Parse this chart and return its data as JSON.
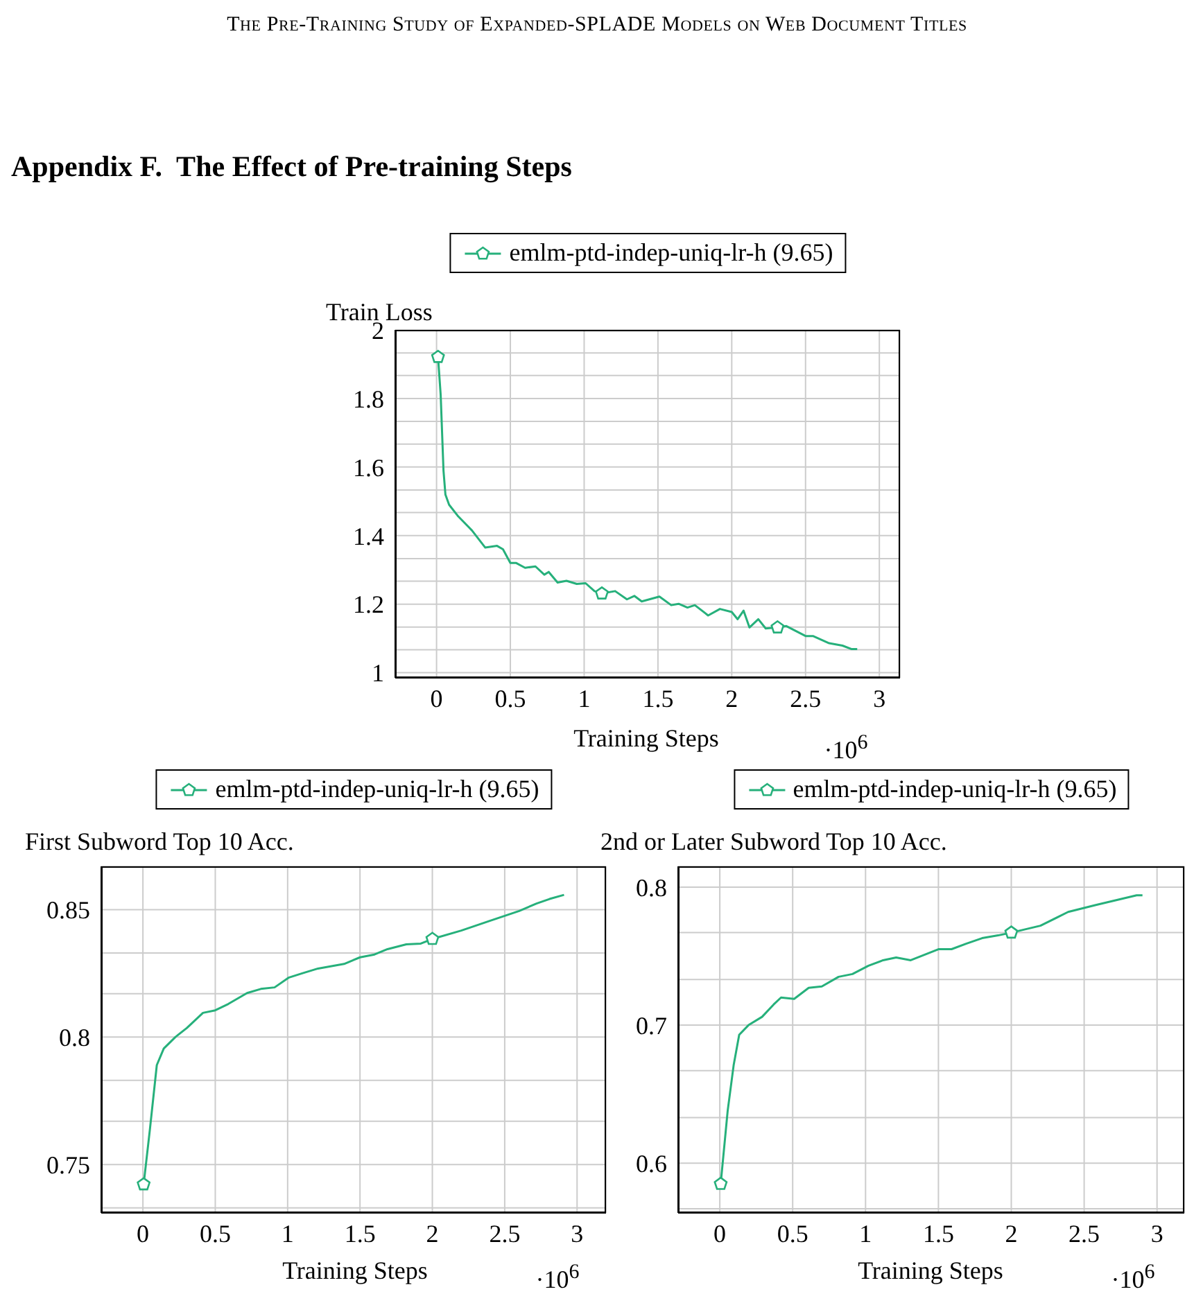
{
  "chart_data": [
    {
      "type": "line",
      "ylabel": "Train Loss",
      "xlabel": "Training Steps",
      "annotations": [
        "The Pre-Training Study of Expanded-SPLADE Models on Web Document Titles",
        "Appendix F.  The Effect of Pre-training Steps",
        "·10$^{6}$"
      ],
      "xlim": [
        -0.28,
        3.14
      ],
      "xticks": [
        0,
        0.5,
        1,
        1.5,
        2,
        2.5,
        3
      ],
      "ylim": [
        0.985,
        2.0
      ],
      "yticks": [
        1,
        {
          "value": 1.067,
          "label": null
        },
        {
          "value": 1.133,
          "label": null
        },
        1.2,
        {
          "value": 1.267,
          "label": null
        },
        {
          "value": 1.333,
          "label": null
        },
        1.4,
        {
          "value": 1.467,
          "label": null
        },
        {
          "value": 1.533,
          "label": null
        },
        1.6,
        {
          "value": 1.667,
          "label": null
        },
        {
          "value": 1.733,
          "label": null
        },
        1.8,
        {
          "value": 1.867,
          "label": null
        },
        {
          "value": 1.933,
          "label": null
        },
        2
      ],
      "grid": true,
      "legend": "top",
      "line_style": "solid",
      "series": [
        {
          "name": "emlm-ptd-indep-uniq-lr-h (9.65)",
          "color": "#26b07b",
          "x": [
            0.01,
            0.028,
            0.047,
            0.06,
            0.085,
            0.147,
            0.24,
            0.33,
            0.41,
            0.45,
            0.5,
            0.54,
            0.6,
            0.67,
            0.73,
            0.76,
            0.82,
            0.88,
            0.95,
            1.01,
            1.07,
            1.12,
            1.21,
            1.29,
            1.34,
            1.39,
            1.51,
            1.59,
            1.64,
            1.7,
            1.75,
            1.84,
            1.92,
            2.0,
            2.04,
            2.08,
            2.12,
            2.18,
            2.23,
            2.31,
            2.37,
            2.5,
            2.55,
            2.66,
            2.75,
            2.81,
            2.85
          ],
          "values": [
            1.921,
            1.81,
            1.59,
            1.52,
            1.49,
            1.456,
            1.415,
            1.365,
            1.37,
            1.36,
            1.32,
            1.32,
            1.306,
            1.31,
            1.286,
            1.294,
            1.263,
            1.268,
            1.259,
            1.261,
            1.238,
            1.231,
            1.238,
            1.214,
            1.224,
            1.208,
            1.222,
            1.197,
            1.201,
            1.19,
            1.197,
            1.167,
            1.186,
            1.177,
            1.156,
            1.181,
            1.132,
            1.156,
            1.129,
            1.132,
            1.136,
            1.107,
            1.107,
            1.086,
            1.079,
            1.069,
            1.069
          ]
        },
        {
          "type": "scatter",
          "color": "#26b07b",
          "x": [
            0.01,
            1.12,
            2.31
          ],
          "values": [
            1.921,
            1.231,
            1.132
          ]
        }
      ]
    },
    {
      "type": "line",
      "ylabel": "First Subword Top 10 Acc.",
      "xlabel": "Training Steps",
      "annotations": [
        "·10$^{6}$"
      ],
      "xlim": [
        -0.288,
        3.2
      ],
      "xticks": [
        0,
        0.5,
        1,
        1.5,
        2,
        2.5,
        3
      ],
      "ylim": [
        0.731,
        0.867
      ],
      "yticks": [
        {
          "value": 0.733,
          "label": null
        },
        0.75,
        {
          "value": 0.767,
          "label": null
        },
        {
          "value": 0.783,
          "label": null
        },
        0.8,
        {
          "value": 0.817,
          "label": null
        },
        {
          "value": 0.833,
          "label": null
        },
        0.85,
        {
          "value": 0.867,
          "label": null
        }
      ],
      "grid": true,
      "legend": "top",
      "line_style": "solid",
      "series": [
        {
          "name": "emlm-ptd-indep-uniq-lr-h (9.65)",
          "color": "#26b07b",
          "x": [
            0.005,
            0.048,
            0.096,
            0.144,
            0.224,
            0.304,
            0.415,
            0.5,
            0.59,
            0.72,
            0.815,
            0.91,
            1.006,
            1.1,
            1.21,
            1.39,
            1.5,
            1.6,
            1.69,
            1.82,
            1.92,
            2.0,
            2.2,
            2.39,
            2.6,
            2.72,
            2.81,
            2.91
          ],
          "values": [
            0.7422,
            0.7636,
            0.789,
            0.7955,
            0.8,
            0.8036,
            0.8095,
            0.8105,
            0.813,
            0.8173,
            0.8189,
            0.8195,
            0.8233,
            0.825,
            0.8269,
            0.8287,
            0.8313,
            0.8324,
            0.8345,
            0.8364,
            0.8367,
            0.8385,
            0.8418,
            0.8455,
            0.8495,
            0.8524,
            0.8542,
            0.8558
          ]
        },
        {
          "type": "scatter",
          "color": "#26b07b",
          "x": [
            0.005,
            2.0
          ],
          "values": [
            0.7422,
            0.8385
          ]
        }
      ]
    },
    {
      "type": "line",
      "ylabel": "2nd or Later Subword Top 10 Acc.",
      "xlabel": "Training Steps",
      "annotations": [
        "·10$^{6}$"
      ],
      "xlim": [
        -0.286,
        3.187
      ],
      "xticks": [
        0,
        0.5,
        1,
        1.5,
        2,
        2.5,
        3
      ],
      "ylim": [
        0.564,
        0.815
      ],
      "yticks": [
        {
          "value": 0.567,
          "label": null
        },
        0.6,
        {
          "value": 0.633,
          "label": null
        },
        {
          "value": 0.667,
          "label": null
        },
        0.7,
        {
          "value": 0.733,
          "label": null
        },
        {
          "value": 0.767,
          "label": null
        },
        0.8
      ],
      "grid": true,
      "legend": "top",
      "line_style": "solid",
      "series": [
        {
          "name": "emlm-ptd-indep-uniq-lr-h (9.65)",
          "color": "#26b07b",
          "x": [
            0.006,
            0.054,
            0.095,
            0.133,
            0.197,
            0.29,
            0.37,
            0.42,
            0.51,
            0.61,
            0.7,
            0.815,
            0.91,
            1.02,
            1.12,
            1.21,
            1.31,
            1.5,
            1.59,
            1.69,
            1.8,
            1.91,
            2.0,
            2.2,
            2.39,
            2.58,
            2.74,
            2.86,
            2.9
          ],
          "values": [
            0.585,
            0.638,
            0.671,
            0.693,
            0.7,
            0.706,
            0.715,
            0.72,
            0.719,
            0.727,
            0.728,
            0.735,
            0.737,
            0.743,
            0.747,
            0.749,
            0.747,
            0.755,
            0.755,
            0.759,
            0.763,
            0.765,
            0.767,
            0.772,
            0.782,
            0.787,
            0.791,
            0.794,
            0.794
          ]
        },
        {
          "type": "scatter",
          "color": "#26b07b",
          "x": [
            0.006,
            2.0
          ],
          "values": [
            0.585,
            0.767
          ]
        }
      ]
    }
  ]
}
